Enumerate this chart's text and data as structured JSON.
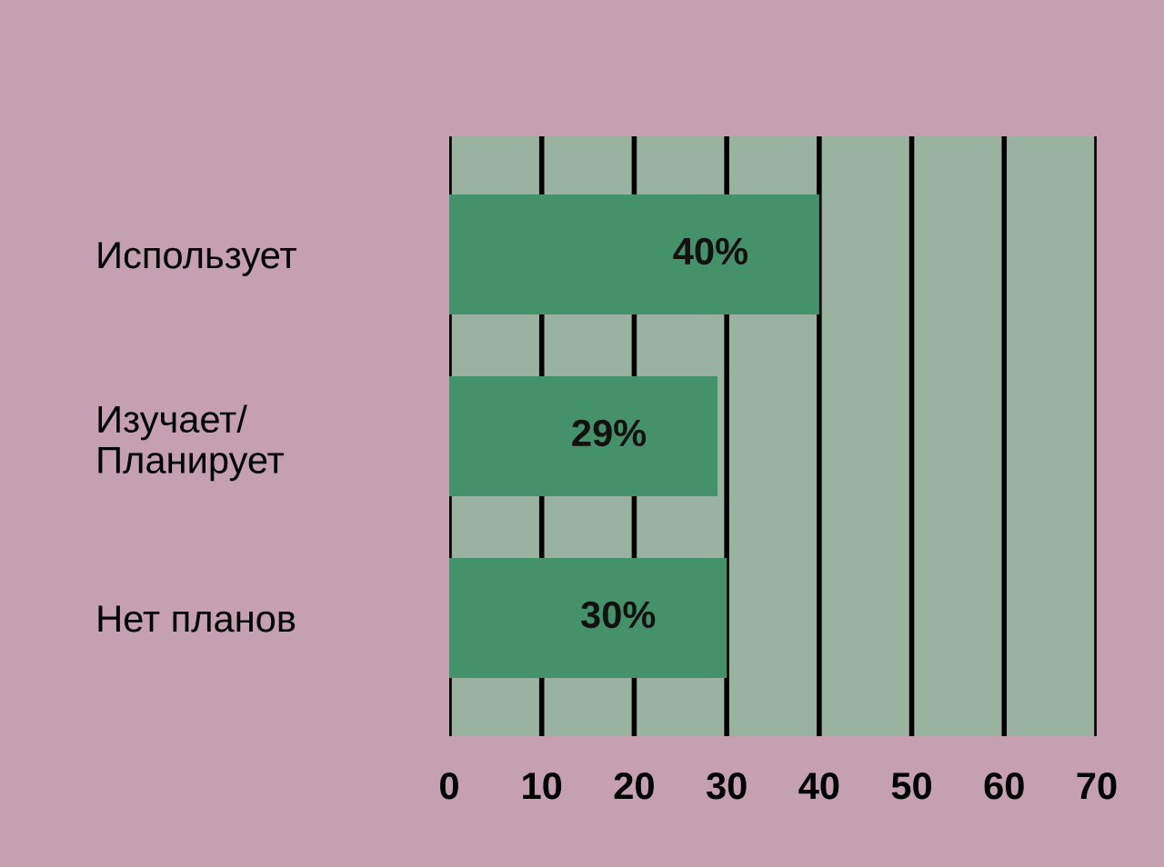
{
  "chart_data": {
    "type": "bar",
    "orientation": "horizontal",
    "categories": [
      "Использует",
      "Изучает/\nПланирует",
      "Нет планов"
    ],
    "values": [
      40,
      29,
      30
    ],
    "color": "#44916a",
    "value_labels": [
      "40%",
      "29%",
      "30%"
    ],
    "xlim": [
      0,
      70
    ],
    "xticks": [
      0,
      10,
      20,
      30,
      40,
      50,
      60,
      70
    ],
    "grid": "x",
    "legend": false
  }
}
